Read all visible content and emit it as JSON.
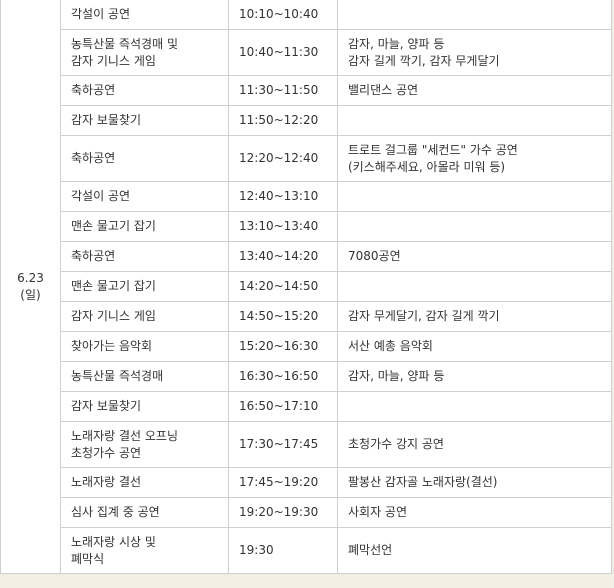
{
  "date": [
    "6.23",
    "(일)"
  ],
  "rows": [
    [
      [
        "각설이 공연"
      ],
      [
        "10:10~10:40"
      ],
      []
    ],
    [
      [
        "농특산물 즉석경매 및",
        "감자 기니스 게임"
      ],
      [
        "10:40~11:30"
      ],
      [
        "감자, 마늘, 양파 등",
        "감자 길게 깍기, 감자 무게달기"
      ]
    ],
    [
      [
        "축하공연"
      ],
      [
        "11:30~11:50"
      ],
      [
        "밸리댄스 공연"
      ]
    ],
    [
      [
        "감자 보물찾기"
      ],
      [
        "11:50~12:20"
      ],
      []
    ],
    [
      [
        "축하공연"
      ],
      [
        "12:20~12:40"
      ],
      [
        "트로트 걸그룹 \"세컨드\" 가수 공연",
        "(키스해주세요, 아몰라 미워 등)"
      ]
    ],
    [
      [
        "각설이 공연"
      ],
      [
        "12:40~13:10"
      ],
      []
    ],
    [
      [
        "맨손 물고기 잡기"
      ],
      [
        "13:10~13:40"
      ],
      []
    ],
    [
      [
        "축하공연"
      ],
      [
        "13:40~14:20"
      ],
      [
        "7080공연"
      ]
    ],
    [
      [
        "맨손 물고기 잡기"
      ],
      [
        "14:20~14:50"
      ],
      []
    ],
    [
      [
        "감자 기니스 게임"
      ],
      [
        "14:50~15:20"
      ],
      [
        "감자 무게달기, 감자 길게 깍기"
      ]
    ],
    [
      [
        "찾아가는 음악회"
      ],
      [
        "15:20~16:30"
      ],
      [
        "서산 예총 음악회"
      ]
    ],
    [
      [
        "농특산물 즉석경매"
      ],
      [
        "16:30~16:50"
      ],
      [
        "감자, 마늘, 양파 등"
      ]
    ],
    [
      [
        "감자 보물찾기"
      ],
      [
        "16:50~17:10"
      ],
      []
    ],
    [
      [
        "노래자랑 결선 오프닝",
        "초청가수 공연"
      ],
      [
        "17:30~17:45"
      ],
      [
        "초청가수 강지 공연"
      ]
    ],
    [
      [
        "노래자랑 결선"
      ],
      [
        "17:45~19:20"
      ],
      [
        "팔봉산 감자골 노래자랑(결선)"
      ]
    ],
    [
      [
        "심사 집계 중 공연"
      ],
      [
        "19:20~19:30"
      ],
      [
        "사회자 공연"
      ]
    ],
    [
      [
        "노래자랑 시상 및",
        "폐막식"
      ],
      [
        "19:30"
      ],
      [
        "폐막선언"
      ]
    ]
  ]
}
